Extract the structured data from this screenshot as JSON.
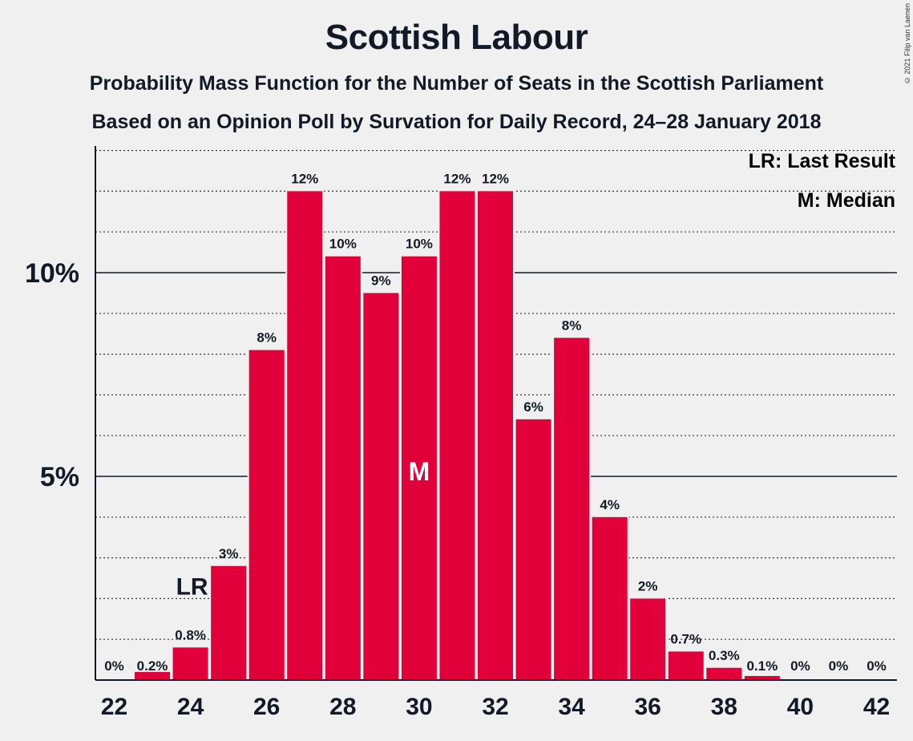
{
  "title": "Scottish Labour",
  "subtitle1": "Probability Mass Function for the Number of Seats in the Scottish Parliament",
  "subtitle2": "Based on an Opinion Poll by Survation for Daily Record, 24–28 January 2018",
  "copyright": "© 2021 Filip van Laenen",
  "legend": {
    "last_result": "LR: Last Result",
    "median": "M: Median"
  },
  "colors": {
    "bar": "#e2003a",
    "background": "#f0f0f0",
    "text": "#111a26"
  },
  "chart_data": {
    "type": "bar",
    "title": "Scottish Labour",
    "categories": [
      22,
      23,
      24,
      25,
      26,
      27,
      28,
      29,
      30,
      31,
      32,
      33,
      34,
      35,
      36,
      37,
      38,
      39,
      40,
      41,
      42
    ],
    "values": [
      0.0,
      0.2,
      0.8,
      2.8,
      8.1,
      12.0,
      10.4,
      9.5,
      10.4,
      12.0,
      12.0,
      6.4,
      8.4,
      4.0,
      2.0,
      0.7,
      0.3,
      0.1,
      0.02,
      0.0,
      0.0
    ],
    "data_labels": [
      "0%",
      "0.2%",
      "0.8%",
      "3%",
      "8%",
      "12%",
      "10%",
      "9%",
      "10%",
      "12%",
      "12%",
      "6%",
      "8%",
      "4%",
      "2%",
      "0.7%",
      "0.3%",
      "0.1%",
      "0%",
      "0%",
      "0%"
    ],
    "x_tick_labels": [
      "22",
      "24",
      "26",
      "28",
      "30",
      "32",
      "34",
      "36",
      "38",
      "40",
      "42"
    ],
    "y_tick_labels": [
      {
        "value": 5,
        "label": "5%"
      },
      {
        "value": 10,
        "label": "10%"
      }
    ],
    "ylim": [
      0,
      13.1
    ],
    "minor_grid_step": 1,
    "last_result": {
      "x": 24,
      "label": "LR"
    },
    "median": {
      "x": 30,
      "label": "M"
    },
    "legend_placement": "top-right",
    "grid": true
  }
}
